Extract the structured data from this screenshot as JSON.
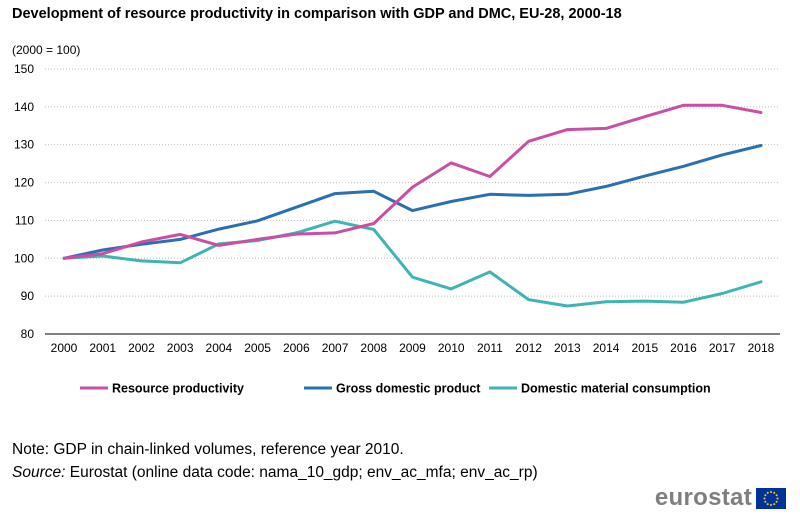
{
  "chart_data": {
    "type": "line",
    "title": "Development of resource productivity in comparison with GDP and DMC, EU-28, 2000-18",
    "subtitle": "(2000 = 100)",
    "xlabel": "",
    "ylabel": "",
    "ylim": [
      80,
      150
    ],
    "yticks": [
      80,
      90,
      100,
      110,
      120,
      130,
      140,
      150
    ],
    "grid": true,
    "legend_position": "bottom",
    "categories": [
      "2000",
      "2001",
      "2002",
      "2003",
      "2004",
      "2005",
      "2006",
      "2007",
      "2008",
      "2009",
      "2010",
      "2011",
      "2012",
      "2013",
      "2014",
      "2015",
      "2016",
      "2017",
      "2018"
    ],
    "series": [
      {
        "name": "Resource productivity",
        "color": "#c94fa4",
        "values": [
          100,
          101.2,
          104.3,
          106.3,
          103.4,
          105.0,
          106.4,
          106.7,
          109.2,
          118.8,
          125.2,
          121.6,
          130.9,
          134.0,
          134.3,
          137.4,
          140.4,
          140.4,
          138.5
        ]
      },
      {
        "name": "Gross domestic product",
        "color": "#2a6eb4",
        "values": [
          100,
          102.2,
          103.7,
          105.0,
          107.7,
          109.9,
          113.5,
          117.1,
          117.7,
          112.6,
          115.0,
          116.9,
          116.6,
          116.9,
          119.0,
          121.7,
          124.3,
          127.3,
          129.8
        ]
      },
      {
        "name": "Domestic material consumption",
        "color": "#3fb4b3",
        "values": [
          100,
          100.6,
          99.3,
          98.8,
          103.8,
          104.7,
          106.7,
          109.8,
          107.6,
          95.0,
          91.9,
          96.4,
          89.1,
          87.4,
          88.5,
          88.7,
          88.4,
          90.7,
          93.8
        ]
      }
    ]
  },
  "footer": {
    "note": "Note: GDP in chain-linked volumes, reference year 2010.",
    "source_label": "Source:",
    "source_text": "Eurostat (online data code: nama_10_gdp; env_ac_mfa; env_ac_rp)"
  },
  "logo": {
    "text": "eurostat",
    "flag_color": "#003399",
    "star_color": "#ffcc00"
  }
}
